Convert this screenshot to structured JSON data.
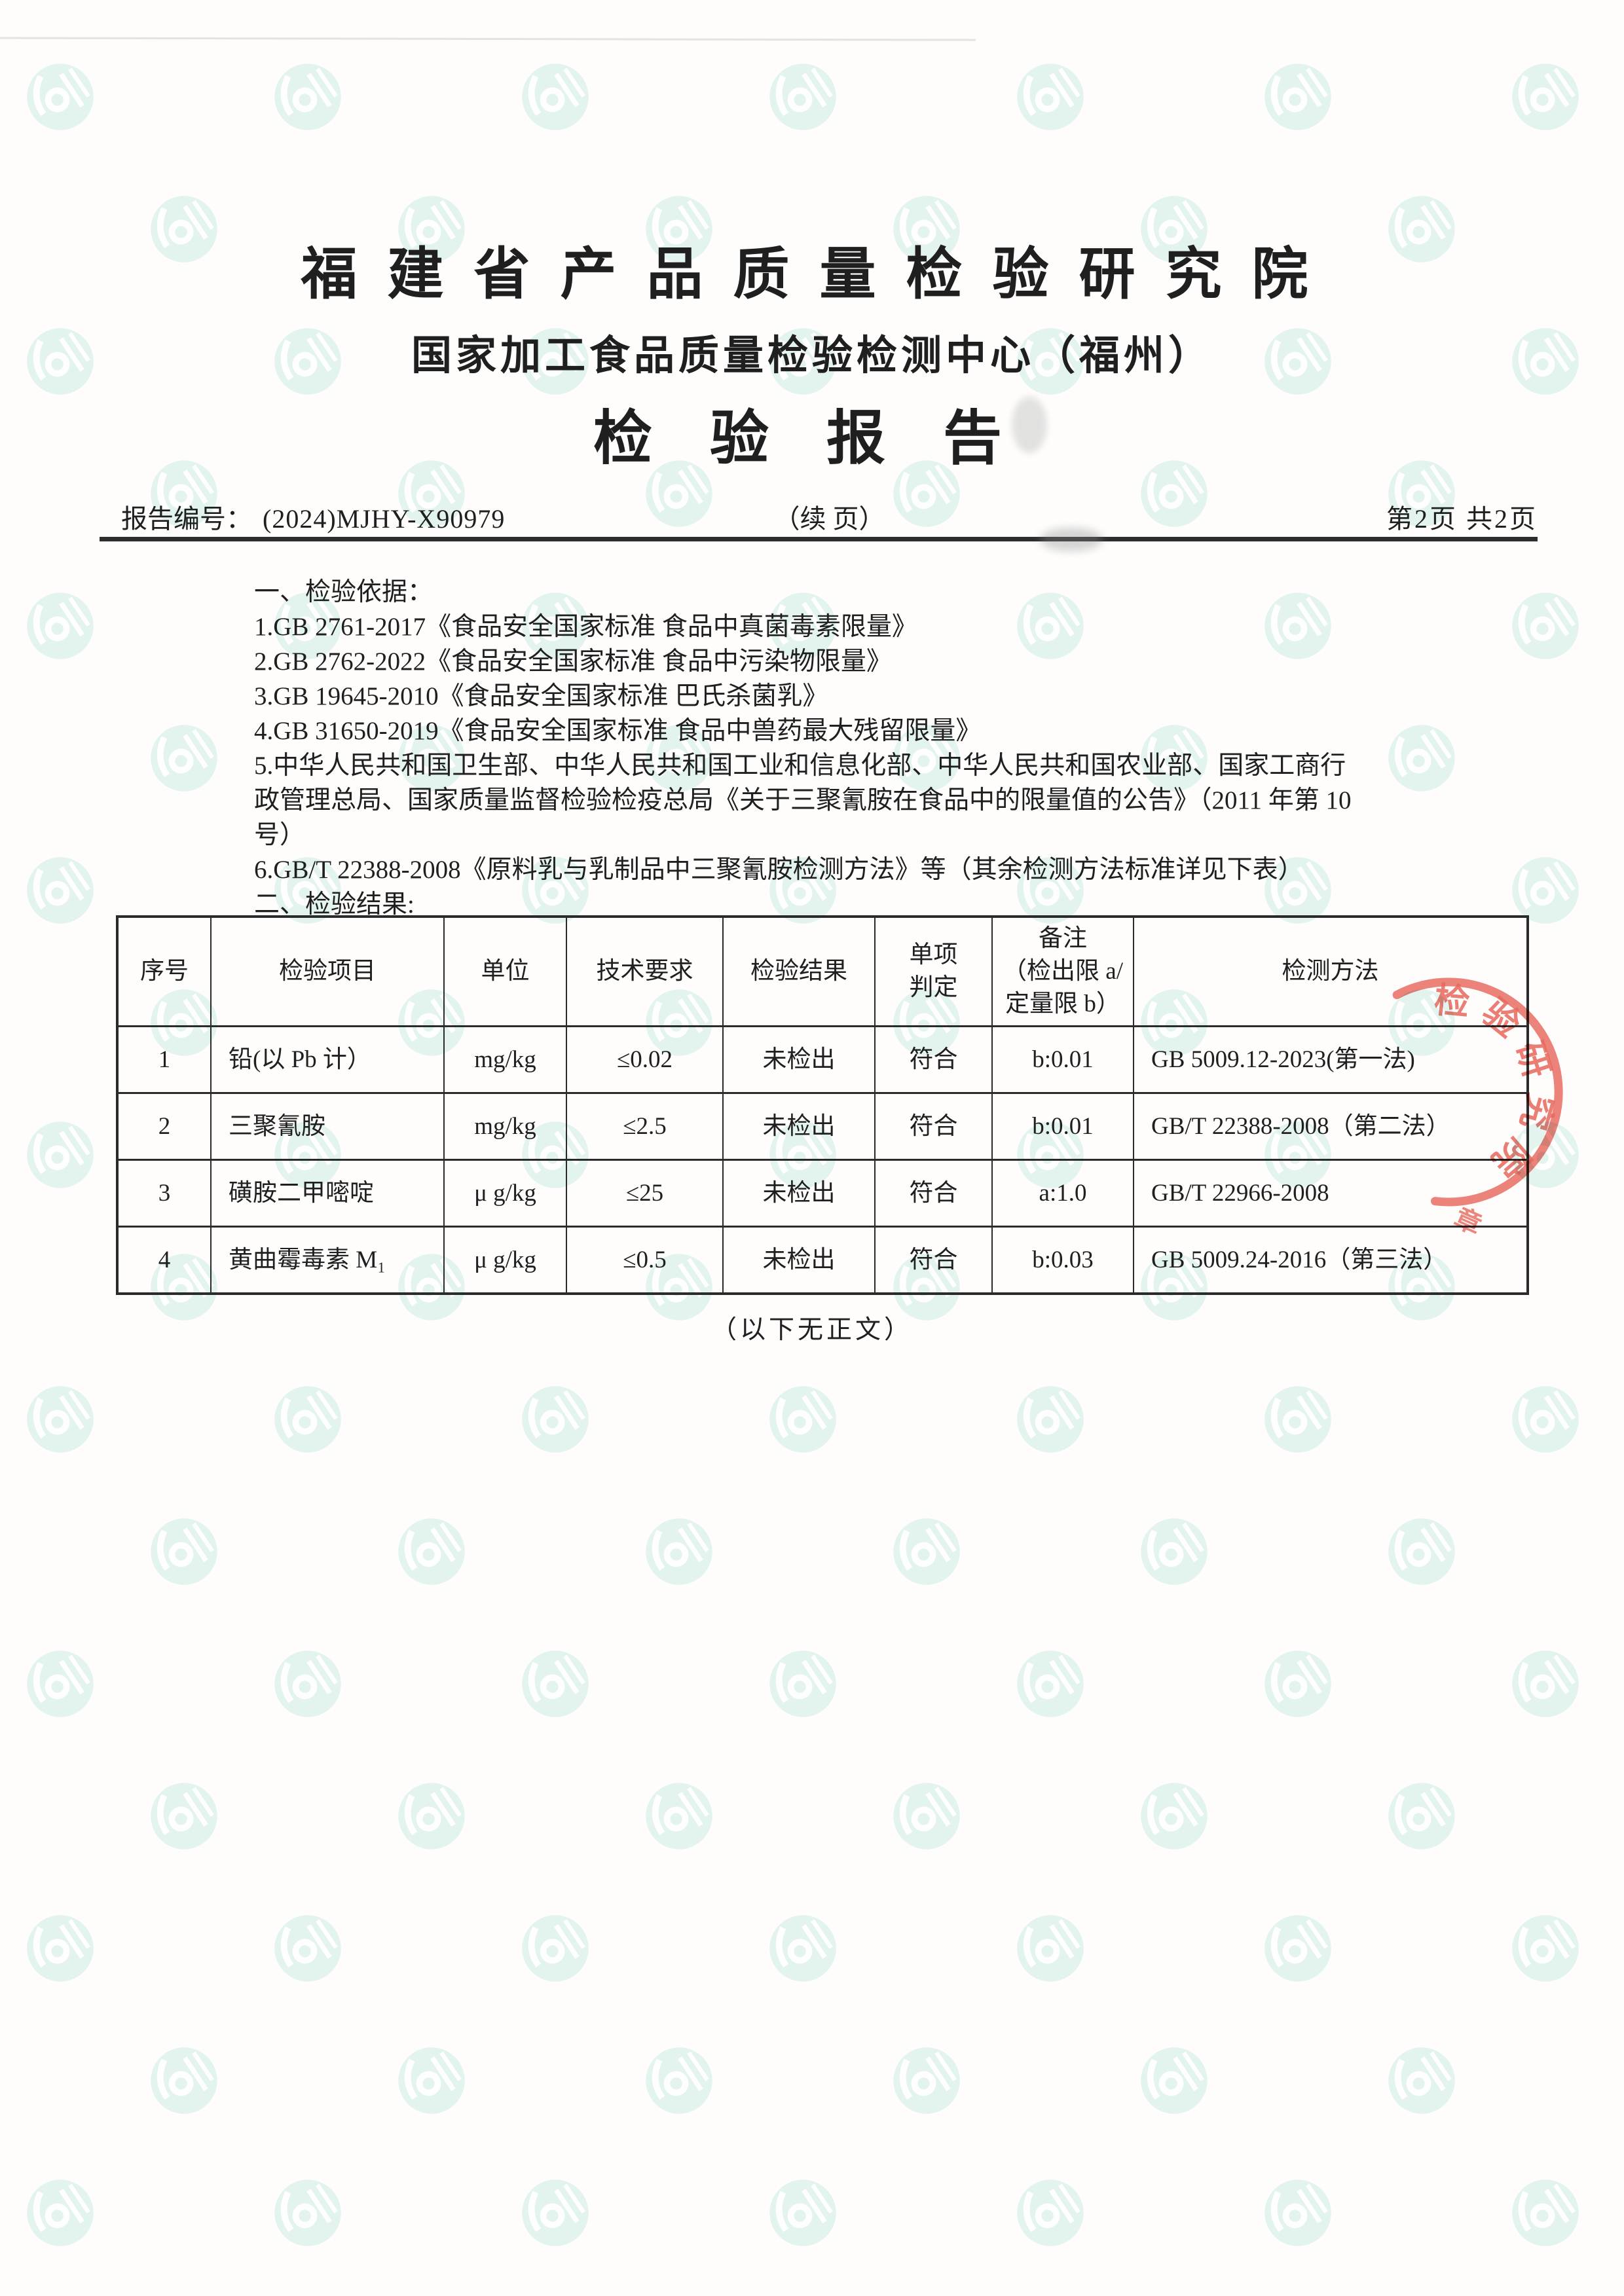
{
  "header": {
    "institute": "福建省产品质量检验研究院",
    "center": "国家加工食品质量检验检测中心（福州）",
    "report_title": "检验报告"
  },
  "meta": {
    "report_no_label": "报告编号：",
    "report_no": "(2024)MJHY-X90979",
    "continuation": "（续 页）",
    "page_info": "第2页 共2页"
  },
  "basis": {
    "lines": [
      "一、检验依据：",
      "1.GB 2761-2017《食品安全国家标准 食品中真菌毒素限量》",
      "2.GB 2762-2022《食品安全国家标准 食品中污染物限量》",
      "3.GB 19645-2010《食品安全国家标准 巴氏杀菌乳》",
      "4.GB 31650-2019《食品安全国家标准 食品中兽药最大残留限量》",
      "5.中华人民共和国卫生部、中华人民共和国工业和信息化部、中华人民共和国农业部、国家工商行",
      "政管理总局、国家质量监督检验检疫总局《关于三聚氰胺在食品中的限量值的公告》（2011 年第 10",
      "号）",
      "6.GB/T 22388-2008《原料乳与乳制品中三聚氰胺检测方法》等（其余检测方法标准详见下表）",
      "二、检验结果:"
    ]
  },
  "table": {
    "headers": [
      "序号",
      "检验项目",
      "单位",
      "技术要求",
      "检验结果",
      "单项\n判定",
      "备注\n（检出限 a/\n定量限 b）",
      "检测方法"
    ],
    "rows": [
      [
        "1",
        "铅(以 Pb 计）",
        "mg/kg",
        "≤0.02",
        "未检出",
        "符合",
        "b:0.01",
        "GB 5009.12-2023(第一法)"
      ],
      [
        "2",
        "三聚氰胺",
        "mg/kg",
        "≤2.5",
        "未检出",
        "符合",
        "b:0.01",
        "GB/T 22388-2008（第二法）"
      ],
      [
        "3",
        "磺胺二甲嘧啶",
        "μ g/kg",
        "≤25",
        "未检出",
        "符合",
        "a:1.0",
        "GB/T 22966-2008"
      ],
      [
        "4",
        "黄曲霉毒素 M₁",
        "μ g/kg",
        "≤0.5",
        "未检出",
        "符合",
        "b:0.03",
        "GB 5009.24-2016（第三法）"
      ]
    ]
  },
  "footer": {
    "note": "（以下无正文）"
  },
  "stamp": {
    "arc_text": "检验研究院",
    "bottom_text": "章",
    "color": "#e65c50"
  },
  "watermark": {
    "color": "#c9ede3"
  }
}
